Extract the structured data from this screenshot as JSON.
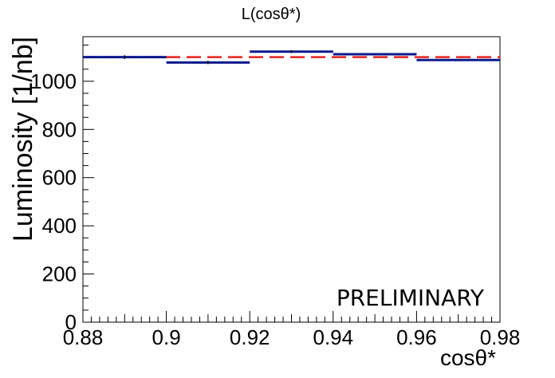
{
  "chart_data": {
    "type": "histogram",
    "title": "L(cosθ*)",
    "xlabel": "cosθ*",
    "ylabel": "Luminosity [1/nb]",
    "annotation": "PRELIMINARY",
    "xlim": [
      0.88,
      0.98
    ],
    "ylim": [
      0,
      1185
    ],
    "x_ticks": [
      "0.88",
      "0.9",
      "0.92",
      "0.94",
      "0.96",
      "0.98"
    ],
    "x_tick_values": [
      0.88,
      0.9,
      0.92,
      0.94,
      0.96,
      0.98
    ],
    "y_ticks": [
      "0",
      "200",
      "400",
      "600",
      "800",
      "1000"
    ],
    "y_tick_values": [
      0,
      200,
      400,
      600,
      800,
      1000
    ],
    "bins": [
      {
        "x_low": 0.88,
        "x_high": 0.9,
        "value": 1100,
        "error": 8
      },
      {
        "x_low": 0.9,
        "x_high": 0.92,
        "value": 1078,
        "error": 7
      },
      {
        "x_low": 0.92,
        "x_high": 0.94,
        "value": 1123,
        "error": 6
      },
      {
        "x_low": 0.94,
        "x_high": 0.96,
        "value": 1112,
        "error": 0
      },
      {
        "x_low": 0.96,
        "x_high": 0.98,
        "value": 1088,
        "error": 0
      }
    ],
    "reference_line": {
      "value": 1100,
      "style": "dashed",
      "color": "#e8221c"
    },
    "colors": {
      "histogram": "#0a1a8c",
      "reference": "#e8221c",
      "frame": "#000000"
    },
    "grid": false
  }
}
